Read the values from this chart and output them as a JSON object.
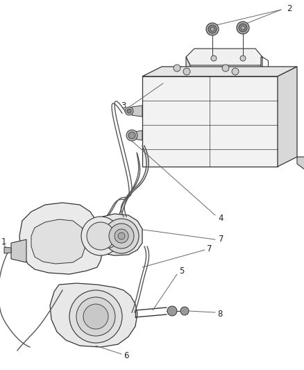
{
  "background_color": "#ffffff",
  "fig_width": 4.38,
  "fig_height": 5.33,
  "dpi": 100,
  "line_color": "#666666",
  "dark_color": "#333333",
  "mid_color": "#888888",
  "light_color": "#cccccc",
  "label_fontsize": 8.5
}
